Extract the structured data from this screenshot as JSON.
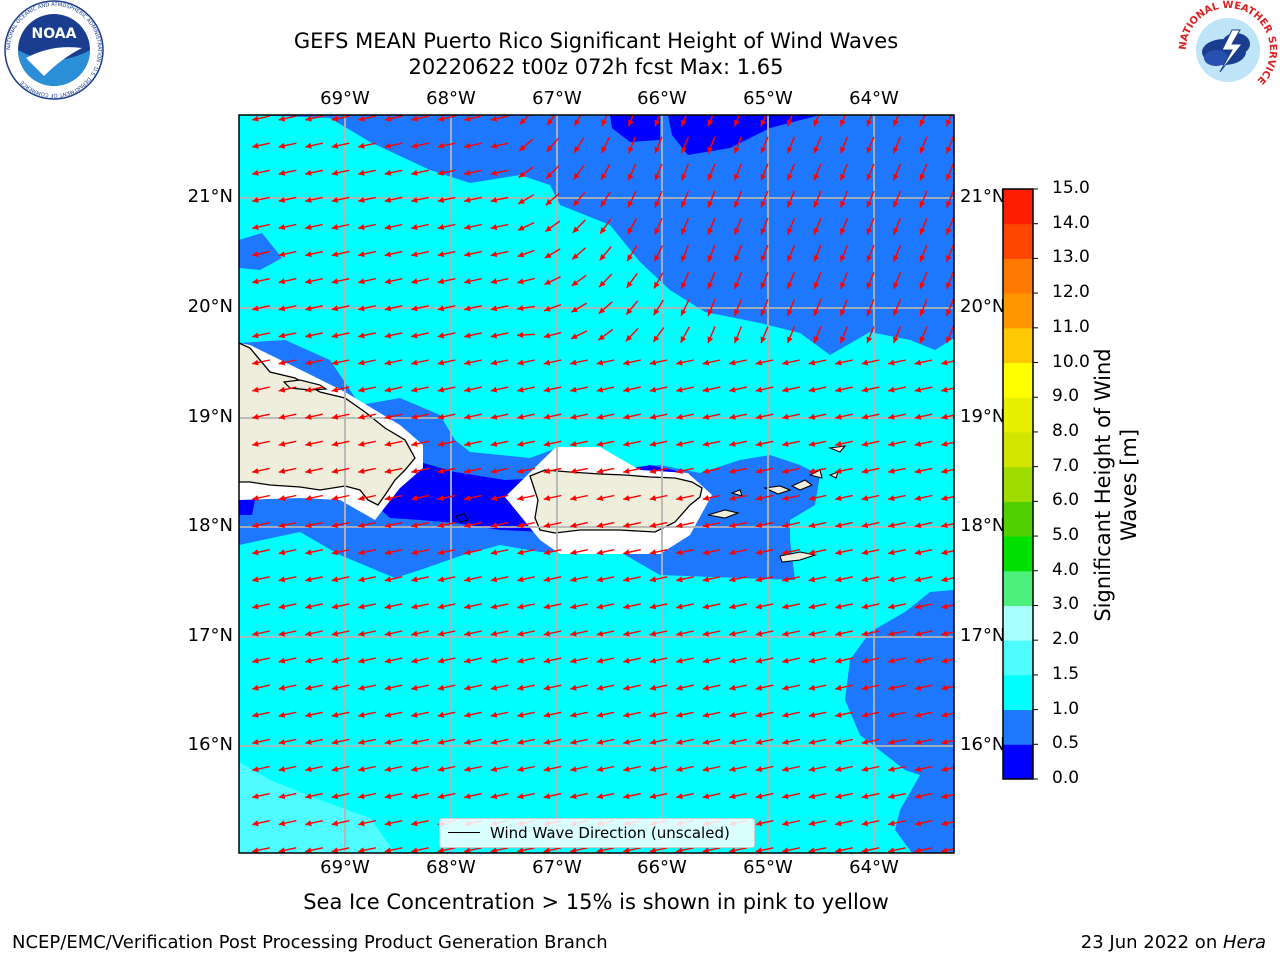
{
  "title": {
    "line1": "GEFS MEAN Puerto Rico Significant Height of Wind Waves",
    "line2": "20220622 t00z 072h fcst   Max: 1.65"
  },
  "map": {
    "lon_labels": [
      "69°W",
      "68°W",
      "67°W",
      "66°W",
      "65°W",
      "64°W"
    ],
    "lat_labels": [
      "21°N",
      "20°N",
      "19°N",
      "18°N",
      "17°N",
      "16°N"
    ]
  },
  "legend": {
    "label": "Wind Wave Direction (unscaled)"
  },
  "colorbar": {
    "label_line1": "Significant Height of Wind",
    "label_line2": "Waves [m]",
    "ticks": [
      "0.0",
      "0.5",
      "1.0",
      "1.5",
      "2.0",
      "3.0",
      "4.0",
      "5.0",
      "6.0",
      "7.0",
      "8.0",
      "9.0",
      "10.0",
      "11.0",
      "12.0",
      "13.0",
      "14.0",
      "15.0"
    ],
    "colors": [
      "#0000ff",
      "#1e78ff",
      "#00ffff",
      "#4ffcff",
      "#aaffff",
      "#4ef07c",
      "#00e000",
      "#50d000",
      "#a0dc00",
      "#d2e600",
      "#e6f000",
      "#ffff00",
      "#ffc800",
      "#ff9600",
      "#ff7800",
      "#ff4600",
      "#ff1e00"
    ]
  },
  "note": "Sea Ice Concentration > 15% is shown in pink to yellow",
  "footer": {
    "left": "NCEP/EMC/Verification Post Processing Product Generation Branch",
    "right_prefix": "23 Jun 2022 on ",
    "right_italic": "Hera"
  },
  "logos": {
    "noaa": "NOAA",
    "noaa_ring": "NATIONAL OCEANIC AND ATMOSPHERIC ADMINISTRATION · U.S. DEPARTMENT OF COMMERCE",
    "nws_ring": "NATIONAL WEATHER SERVICE"
  }
}
